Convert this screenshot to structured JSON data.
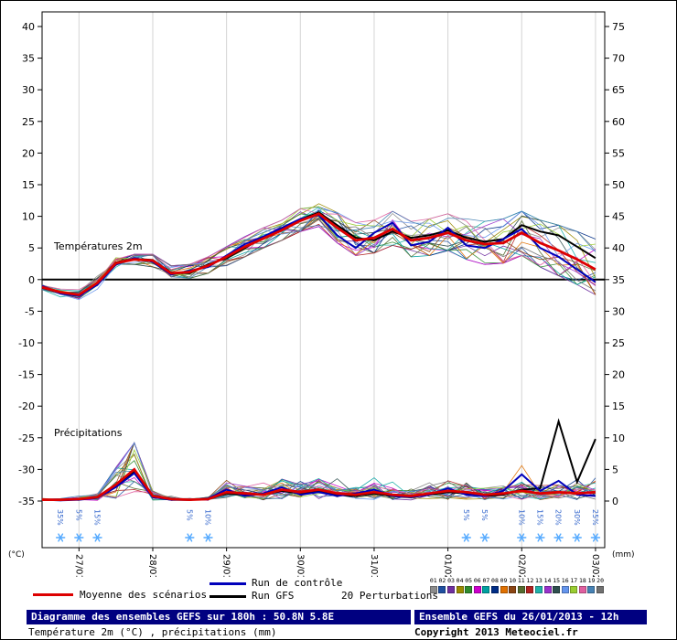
{
  "colors": {
    "mean": "#dd0000",
    "control": "#0000bb",
    "gfs": "#000000",
    "snowflake": "#55aaff",
    "snow_label": "#3366cc",
    "grid": "#d4d4d4",
    "zero_line": "#000000",
    "navy": "#000080"
  },
  "legend": {
    "mean_label": "Moyenne des scénarios",
    "control_label": "Run de contrôle",
    "gfs_label": "Run GFS",
    "perturbations_label": "20 Perturbations"
  },
  "footer": {
    "title": "Diagramme des ensembles GEFS sur 180h : 50.8N 5.8E",
    "subtitle": "Température 2m (°C) , précipitations (mm)",
    "run_info": "Ensemble GEFS du 26/01/2013 - 12h",
    "copyright": "Copyright 2013 Meteociel.fr"
  },
  "chart_data": {
    "type": "line",
    "title": "Diagramme des ensembles GEFS sur 180h : 50.8N 5.8E",
    "legend_position": "bottom",
    "inline_labels": {
      "temperature": "Températures 2m",
      "precipitation": "Précipitations"
    },
    "y_left_unit": "(°C)",
    "y_right_unit": "(mm)",
    "y_left_ticks": [
      40,
      35,
      30,
      25,
      20,
      15,
      10,
      5,
      0,
      -5,
      -10,
      -15,
      -20,
      -25,
      -30,
      -35
    ],
    "y_right_ticks": [
      75,
      70,
      65,
      60,
      55,
      50,
      45,
      40,
      35,
      30,
      25,
      20,
      15,
      10,
      5,
      0
    ],
    "temperature_axis": {
      "min": -35,
      "max": 40
    },
    "precip_axis": {
      "min": 0,
      "max": 75
    },
    "x_tick_labels": [
      "27/01",
      "28/01",
      "29/01",
      "30/01",
      "31/01",
      "01/02",
      "02/02",
      "03/02"
    ],
    "x_tick_hours": [
      12,
      36,
      60,
      84,
      108,
      132,
      156,
      180
    ],
    "x_range_hours": [
      0,
      183
    ],
    "hours_step": 6,
    "zero_line_temp": 0,
    "series": {
      "temperature": {
        "mean": [
          -1.2,
          -2.0,
          -2.4,
          -0.5,
          2.6,
          3.2,
          3.0,
          1.0,
          1.2,
          2.2,
          3.6,
          5.2,
          6.5,
          7.8,
          9.3,
          10.4,
          8.2,
          6.2,
          6.6,
          8.0,
          6.2,
          6.6,
          7.4,
          6.2,
          5.6,
          5.8,
          7.4,
          5.8,
          4.6,
          3.2,
          1.6
        ],
        "control": [
          -1.0,
          -2.2,
          -2.6,
          -0.8,
          2.4,
          3.4,
          2.8,
          0.8,
          1.4,
          2.0,
          3.8,
          5.6,
          6.8,
          8.2,
          9.6,
          10.2,
          7.0,
          5.0,
          7.4,
          9.0,
          5.4,
          6.0,
          8.2,
          5.4,
          5.0,
          6.4,
          8.0,
          5.0,
          3.6,
          1.6,
          -0.4
        ],
        "gfs": [
          -1.3,
          -2.1,
          -2.5,
          -0.6,
          2.7,
          3.3,
          3.1,
          1.1,
          1.0,
          2.4,
          3.4,
          5.0,
          6.7,
          8.0,
          9.5,
          10.6,
          8.6,
          6.6,
          6.2,
          7.6,
          6.6,
          7.0,
          7.8,
          6.6,
          6.0,
          6.4,
          8.6,
          7.6,
          7.0,
          5.2,
          3.4
        ],
        "ensemble_min": [
          -1.8,
          -2.8,
          -3.2,
          -1.5,
          1.6,
          2.4,
          2.0,
          0.0,
          0.2,
          1.0,
          2.2,
          3.6,
          5.0,
          6.2,
          7.6,
          8.4,
          5.8,
          3.8,
          4.2,
          5.4,
          3.6,
          3.8,
          4.6,
          3.2,
          2.4,
          2.6,
          3.8,
          2.0,
          0.6,
          -0.8,
          -2.4
        ],
        "ensemble_max": [
          -0.6,
          -1.2,
          -1.6,
          0.6,
          3.6,
          4.0,
          4.0,
          2.2,
          2.4,
          3.6,
          5.2,
          6.8,
          8.2,
          9.6,
          11.2,
          12.0,
          10.6,
          9.0,
          9.4,
          10.8,
          9.2,
          9.6,
          10.4,
          9.6,
          9.2,
          9.6,
          10.8,
          9.4,
          8.6,
          7.6,
          6.4
        ]
      },
      "precipitation": {
        "mean": [
          0.2,
          0.2,
          0.3,
          0.6,
          2.6,
          5.0,
          0.8,
          0.3,
          0.2,
          0.3,
          1.4,
          1.2,
          1.0,
          1.8,
          1.4,
          1.8,
          1.2,
          1.0,
          1.4,
          1.0,
          0.8,
          1.2,
          1.6,
          1.4,
          1.0,
          1.2,
          1.6,
          1.2,
          1.4,
          1.2,
          1.4
        ],
        "control": [
          0.2,
          0.1,
          0.2,
          0.5,
          2.2,
          4.4,
          0.6,
          0.2,
          0.2,
          0.4,
          1.8,
          0.8,
          1.2,
          2.2,
          1.0,
          1.4,
          0.8,
          1.2,
          1.8,
          0.8,
          0.6,
          1.0,
          2.0,
          1.0,
          0.8,
          1.6,
          4.2,
          1.6,
          3.2,
          1.0,
          0.8
        ],
        "gfs": [
          0.2,
          0.2,
          0.3,
          0.5,
          2.4,
          4.6,
          0.7,
          0.2,
          0.2,
          0.3,
          1.2,
          1.0,
          1.0,
          1.6,
          1.2,
          1.6,
          1.0,
          0.8,
          1.2,
          0.8,
          0.6,
          1.0,
          1.4,
          1.2,
          0.8,
          1.0,
          1.8,
          2.0,
          12.6,
          3.0,
          9.8
        ],
        "ensemble_min": [
          0,
          0,
          0,
          0,
          0,
          0,
          0,
          0,
          0,
          0,
          0,
          0,
          0,
          0,
          0,
          0,
          0,
          0,
          0,
          0,
          0,
          0,
          0,
          0,
          0,
          0,
          0,
          0,
          0,
          0,
          0
        ],
        "ensemble_max": [
          0.5,
          0.5,
          0.8,
          1.5,
          6.0,
          9.2,
          2.0,
          0.8,
          0.6,
          1.2,
          4.4,
          3.6,
          3.2,
          6.8,
          4.0,
          5.2,
          3.6,
          3.0,
          4.6,
          3.0,
          2.4,
          3.6,
          5.0,
          4.2,
          3.0,
          4.4,
          5.6,
          4.0,
          5.4,
          4.0,
          4.4
        ]
      }
    },
    "perturbations": {
      "count": 20,
      "labels": [
        "01",
        "02",
        "03",
        "04",
        "05",
        "06",
        "07",
        "08",
        "09",
        "10",
        "11",
        "12",
        "13",
        "14",
        "15",
        "16",
        "17",
        "18",
        "19",
        "20"
      ],
      "colors": [
        "#8c8c8c",
        "#1f4fa0",
        "#7030a0",
        "#9a8a00",
        "#2e8b2e",
        "#cc00cc",
        "#00a0a0",
        "#002d86",
        "#e07000",
        "#8b4513",
        "#556b2f",
        "#b22222",
        "#20b2aa",
        "#9932cc",
        "#2f4f4f",
        "#6495ed",
        "#9acd32",
        "#e060a0",
        "#4682b4",
        "#707070"
      ]
    },
    "snow_markers": [
      {
        "hour": 6,
        "label": "35%"
      },
      {
        "hour": 12,
        "label": "5%"
      },
      {
        "hour": 18,
        "label": "15%"
      },
      {
        "hour": 48,
        "label": "5%"
      },
      {
        "hour": 54,
        "label": "10%"
      },
      {
        "hour": 138,
        "label": "5%"
      },
      {
        "hour": 144,
        "label": "5%"
      },
      {
        "hour": 156,
        "label": "10%"
      },
      {
        "hour": 162,
        "label": "15%"
      },
      {
        "hour": 168,
        "label": "20%"
      },
      {
        "hour": 174,
        "label": "30%"
      },
      {
        "hour": 180,
        "label": "25%"
      }
    ]
  }
}
